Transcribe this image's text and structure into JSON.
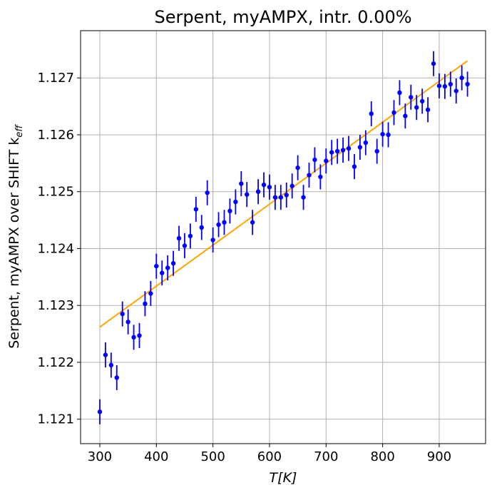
{
  "chart_data": {
    "type": "scatter",
    "title": "Serpent, myAMPX, intr. 0.00%",
    "xlabel": "T[K]",
    "ylabel": "Serpent, myAMPX over SHIFT k",
    "ylabel_sub": "eff",
    "xlim": [
      266,
      982
    ],
    "ylim": [
      1.12057,
      1.12783
    ],
    "xticks": [
      300,
      400,
      500,
      600,
      700,
      800,
      900
    ],
    "yticks": [
      1.121,
      1.122,
      1.123,
      1.124,
      1.125,
      1.126,
      1.127
    ],
    "ytick_labels": [
      "1.121",
      "1.122",
      "1.123",
      "1.124",
      "1.125",
      "1.126",
      "1.127"
    ],
    "grid": true,
    "colors": {
      "points": "#0000ff",
      "fit": "#ffa500",
      "grid": "#b0b0b0"
    },
    "series": [
      {
        "kind": "errorbar",
        "color": "#0000ff",
        "x": [
          300,
          310,
          320,
          330,
          340,
          350,
          360,
          370,
          380,
          390,
          400,
          410,
          420,
          430,
          440,
          450,
          460,
          470,
          480,
          490,
          500,
          510,
          520,
          530,
          540,
          550,
          560,
          570,
          580,
          590,
          600,
          610,
          620,
          630,
          640,
          650,
          660,
          670,
          680,
          690,
          700,
          710,
          720,
          730,
          740,
          750,
          760,
          770,
          780,
          790,
          800,
          810,
          820,
          830,
          840,
          850,
          860,
          870,
          880,
          890,
          900,
          910,
          920,
          930,
          940,
          950
        ],
        "y": [
          1.12113,
          1.12213,
          1.12195,
          1.12173,
          1.12285,
          1.12271,
          1.12244,
          1.12247,
          1.12303,
          1.12321,
          1.12369,
          1.12357,
          1.12366,
          1.12374,
          1.12418,
          1.12405,
          1.12422,
          1.12469,
          1.12437,
          1.12498,
          1.12415,
          1.12442,
          1.12446,
          1.12466,
          1.12482,
          1.12514,
          1.12495,
          1.12446,
          1.125,
          1.12512,
          1.12508,
          1.1249,
          1.1249,
          1.12494,
          1.1251,
          1.12542,
          1.1249,
          1.12529,
          1.12556,
          1.12526,
          1.12554,
          1.12569,
          1.12571,
          1.12573,
          1.12576,
          1.12544,
          1.12578,
          1.12586,
          1.12637,
          1.12571,
          1.12601,
          1.126,
          1.12639,
          1.12674,
          1.12633,
          1.12666,
          1.12648,
          1.12659,
          1.12644,
          1.12725,
          1.12686,
          1.12685,
          1.12689,
          1.12677,
          1.127,
          1.12689
        ],
        "yerr": 0.00022
      },
      {
        "kind": "line",
        "color": "#ffa500",
        "x": [
          300,
          950
        ],
        "y": [
          1.12262,
          1.1273
        ]
      }
    ]
  }
}
